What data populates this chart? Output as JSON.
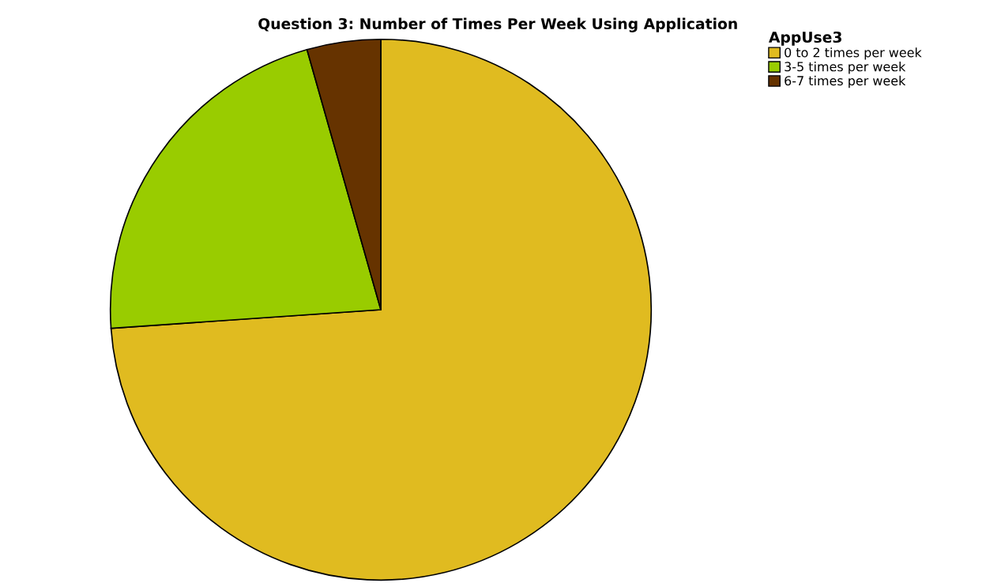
{
  "chart_data": {
    "type": "pie",
    "title": "Question 3: Number of Times Per Week Using Application",
    "legend_title": "AppUse3",
    "categories": [
      "0 to 2 times per week",
      "3-5 times per week",
      "6-7 times per week"
    ],
    "values": [
      73.9,
      21.7,
      4.4
    ],
    "colors": [
      "#e0bb20",
      "#99cc00",
      "#663300"
    ],
    "legend": "top right"
  }
}
